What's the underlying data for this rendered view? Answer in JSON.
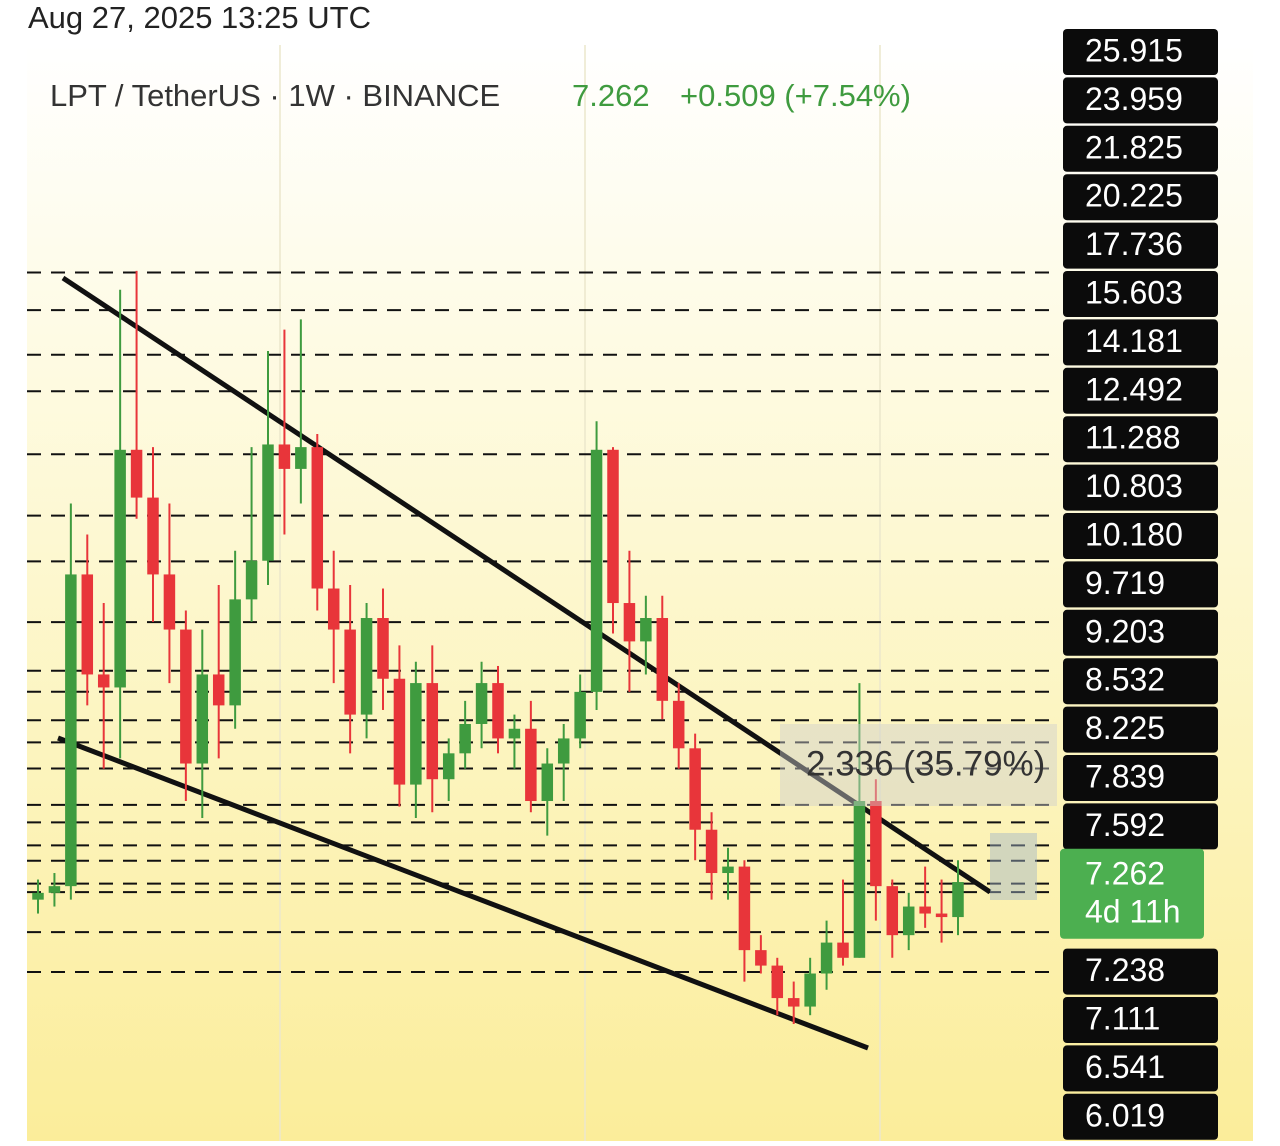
{
  "header": {
    "timestamp": "Aug 27, 2025 13:25 UTC"
  },
  "chart_data": {
    "type": "candlestick",
    "symbol": "LPT / TetherUS · 1W · BINANCE",
    "price_text": "7.262",
    "change_text": "+0.509 (+7.54%)",
    "measure_label": "2.336 (35.79%)",
    "log_scale": true,
    "ylim": [
      4.23,
      42.1
    ],
    "up_color": "#3f9b3f",
    "down_color": "#e8353a",
    "open": [
      7.0,
      7.1,
      7.2,
      13.8,
      11.2,
      10.9,
      17.9,
      16.2,
      13.8,
      12.3,
      9.3,
      11.2,
      10.5,
      13.1,
      14.2,
      18.1,
      17.2,
      18,
      13.4,
      12.3,
      10.3,
      12.6,
      11.1,
      8.9,
      11.0,
      9.0,
      9.5,
      10.1,
      11.0,
      9.8,
      10.0,
      8.6,
      9.3,
      9.8,
      10.8,
      17.9,
      13.0,
      12.0,
      12.6,
      10.6,
      9.6,
      8.1,
      7.4,
      7.5,
      6.3,
      6.1,
      5.7,
      5.6,
      6.0,
      6.4,
      6.2,
      8.6,
      7.2,
      6.5,
      6.9,
      6.8,
      6.75
    ],
    "high": [
      7.3,
      7.4,
      16,
      15,
      13,
      25,
      26,
      18,
      16,
      12.8,
      12.3,
      13.5,
      14.5,
      18,
      22,
      23,
      23.5,
      18.5,
      14.5,
      13.5,
      13,
      13.4,
      11.9,
      11.5,
      11.9,
      9.8,
      10.6,
      11.5,
      11.4,
      10.3,
      10.6,
      9.6,
      10.1,
      11.2,
      19,
      18,
      14.5,
      13.2,
      13.2,
      11.0,
      9.9,
      8.4,
      7.8,
      7.6,
      6.5,
      6.2,
      5.9,
      6.2,
      6.7,
      7.3,
      11.0,
      9.0,
      7.3,
      7.1,
      7.5,
      7.3,
      7.6
    ],
    "low": [
      6.8,
      6.9,
      7.0,
      10.5,
      9.2,
      9.4,
      15.5,
      12.5,
      11,
      8.6,
      8.3,
      9.4,
      10,
      12.5,
      13.5,
      15,
      16,
      12.8,
      11,
      9.5,
      9.8,
      10.4,
      8.5,
      8.3,
      8.4,
      8.6,
      9.2,
      9.6,
      9.5,
      9.2,
      8.4,
      8.0,
      8.6,
      9.6,
      10.4,
      12.2,
      10.8,
      11.2,
      10.2,
      9.2,
      7.6,
      7.0,
      7.0,
      5.9,
      6.0,
      5.5,
      5.4,
      5.5,
      5.8,
      6.1,
      6.2,
      6.7,
      6.2,
      6.3,
      6.6,
      6.4,
      6.5
    ],
    "close": [
      7.1,
      7.2,
      13.8,
      11.2,
      10.9,
      17.9,
      16.2,
      13.8,
      12.3,
      9.3,
      11.2,
      10.5,
      13.1,
      14.2,
      18.1,
      17.2,
      18,
      13.4,
      12.3,
      10.3,
      12.6,
      11.1,
      8.9,
      11.0,
      9.0,
      9.5,
      10.1,
      11.0,
      9.8,
      10.0,
      8.6,
      9.3,
      9.8,
      10.8,
      17.9,
      13.0,
      12.0,
      12.6,
      10.6,
      9.6,
      8.1,
      7.4,
      7.5,
      6.3,
      6.1,
      5.7,
      5.6,
      6.0,
      6.4,
      6.2,
      8.6,
      7.2,
      6.5,
      6.9,
      6.8,
      6.75,
      7.262
    ],
    "levels": [
      25.915,
      23.959,
      21.825,
      20.225,
      17.736,
      15.603,
      14.181,
      12.492,
      11.288,
      10.803,
      {
        "value": 10.18,
        "label": "10.180"
      },
      9.719,
      9.203,
      8.532,
      8.225,
      7.839,
      7.592,
      7.238,
      7.111,
      6.541,
      6.019
    ],
    "last_price": 7.262,
    "countdown": "4d 11h"
  }
}
